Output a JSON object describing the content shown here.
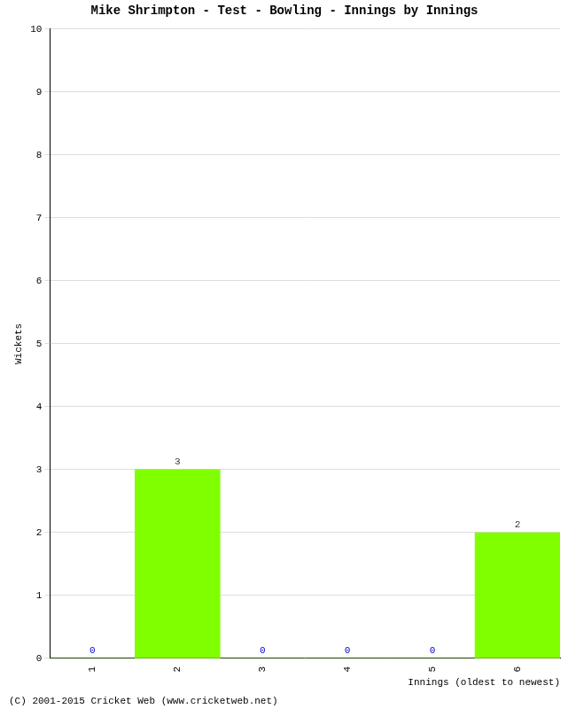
{
  "chart_data": {
    "type": "bar",
    "title": "Mike Shrimpton - Test - Bowling - Innings by Innings",
    "x_label": "Innings (oldest to newest)",
    "y_label": "Wickets",
    "annotations": [
      "(C) 2001-2015 Cricket Web (www.cricketweb.net)"
    ],
    "categories": [
      "1",
      "2",
      "3",
      "4",
      "5",
      "6"
    ],
    "values": [
      0,
      3,
      0,
      0,
      0,
      2
    ],
    "color": "#80ff00",
    "ylim": [
      0,
      10
    ],
    "yticks": [
      0,
      1,
      2,
      3,
      4,
      5,
      6,
      7,
      8,
      9,
      10
    ],
    "grid": true,
    "data_labels": true
  }
}
